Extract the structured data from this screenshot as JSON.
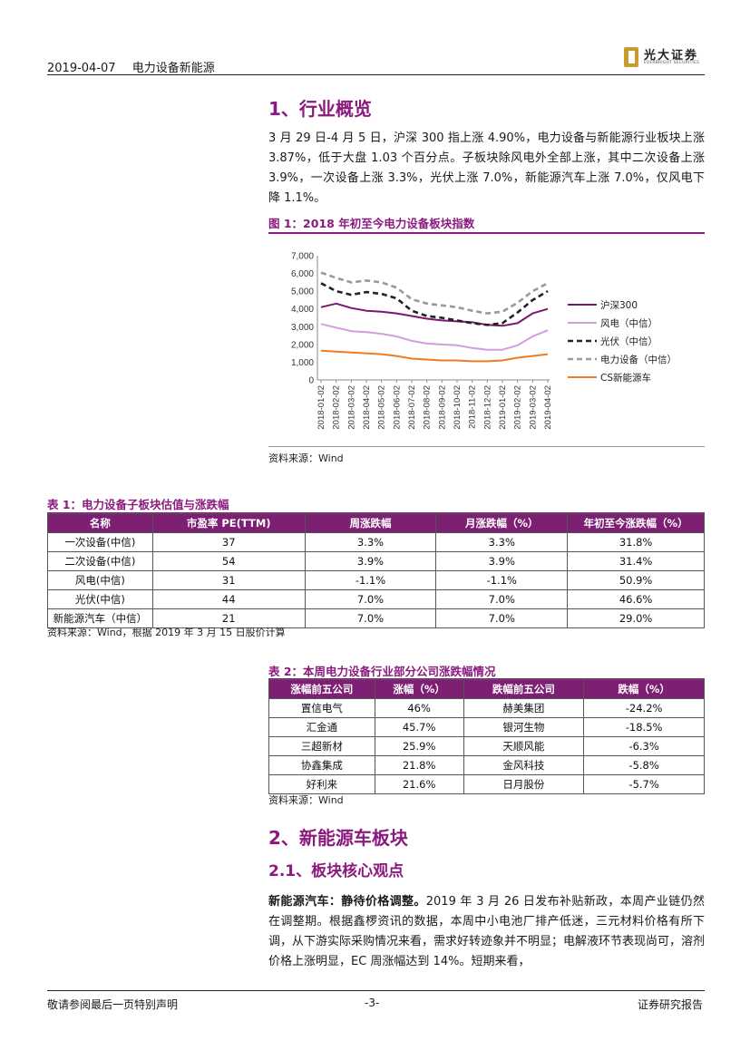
{
  "header": {
    "date": "2019-04-07",
    "section": "电力设备新能源",
    "logo_name": "光大证券",
    "logo_sub": "EVERBRIGHT SECURITIES"
  },
  "section1": {
    "title": "1、行业概览",
    "paragraph": "3 月 29 日-4 月 5 日，沪深 300 指上涨 4.90%，电力设备与新能源行业板块上涨 3.87%，低于大盘 1.03 个百分点。子板块除风电外全部上涨，其中二次设备上涨 3.9%，一次设备上涨 3.3%，光伏上涨 7.0%，新能源汽车上涨 7.0%，仅风电下降 1.1%。"
  },
  "figure1": {
    "title": "图 1：2018 年初至今电力设备板块指数",
    "source": "资料来源：Wind"
  },
  "chart_data": {
    "type": "line",
    "title": "",
    "ylim": [
      0,
      7000
    ],
    "yticks": [
      "7,000",
      "6,000",
      "5,000",
      "4,000",
      "3,000",
      "2,000",
      "1,000",
      "0"
    ],
    "x": [
      "2018-01-02",
      "2018-02-02",
      "2018-03-02",
      "2018-04-02",
      "2018-05-02",
      "2018-06-02",
      "2018-07-02",
      "2018-08-02",
      "2018-09-02",
      "2018-10-02",
      "2018-11-02",
      "2018-12-02",
      "2019-01-02",
      "2019-02-02",
      "2019-03-02",
      "2019-04-02"
    ],
    "legend_position": "right",
    "series": [
      {
        "name": "沪深300",
        "color": "#7b1670",
        "dash": "solid",
        "values": [
          4100,
          4300,
          4050,
          3900,
          3850,
          3750,
          3600,
          3450,
          3350,
          3300,
          3250,
          3100,
          3050,
          3200,
          3750,
          4000
        ]
      },
      {
        "name": "风电（中信）",
        "color": "#d59be0",
        "dash": "solid",
        "values": [
          3150,
          2950,
          2750,
          2700,
          2600,
          2450,
          2200,
          2050,
          2000,
          1950,
          1800,
          1700,
          1700,
          1950,
          2450,
          2800
        ]
      },
      {
        "name": "光伏（中信）",
        "color": "#222222",
        "dash": "dash",
        "values": [
          5450,
          5000,
          4800,
          4950,
          4850,
          4600,
          3900,
          3600,
          3500,
          3350,
          3200,
          3100,
          3200,
          3800,
          4500,
          5000
        ]
      },
      {
        "name": "电力设备（中信）",
        "color": "#999999",
        "dash": "dash",
        "values": [
          6050,
          5750,
          5500,
          5600,
          5500,
          5200,
          4550,
          4300,
          4200,
          4100,
          3900,
          3750,
          3850,
          4350,
          5000,
          5450
        ]
      },
      {
        "name": "CS新能源车",
        "color": "#f07b22",
        "dash": "solid",
        "values": [
          1650,
          1600,
          1550,
          1500,
          1450,
          1350,
          1200,
          1150,
          1100,
          1100,
          1050,
          1050,
          1100,
          1250,
          1350,
          1450
        ]
      }
    ]
  },
  "table1": {
    "title": "表 1：电力设备子板块估值与涨跌幅",
    "headers": [
      "名称",
      "市盈率 PE(TTM)",
      "周涨跌幅",
      "月涨跌幅（%）",
      "年初至今涨跌幅（%）"
    ],
    "rows": [
      [
        "一次设备(中信)",
        "37",
        "3.3%",
        "3.3%",
        "31.8%"
      ],
      [
        "二次设备(中信)",
        "54",
        "3.9%",
        "3.9%",
        "31.4%"
      ],
      [
        "风电(中信)",
        "31",
        "-1.1%",
        "-1.1%",
        "50.9%"
      ],
      [
        "光伏(中信)",
        "44",
        "7.0%",
        "7.0%",
        "46.6%"
      ],
      [
        "新能源汽车（中信）",
        "21",
        "7.0%",
        "7.0%",
        "29.0%"
      ]
    ],
    "source": "资料来源：Wind，根据 2019 年 3 月 15 日股价计算"
  },
  "table2": {
    "title": "表 2：本周电力设备行业部分公司涨跌幅情况",
    "headers": [
      "涨幅前五公司",
      "涨幅（%）",
      "跌幅前五公司",
      "跌幅（%）"
    ],
    "rows": [
      [
        "置信电气",
        "46%",
        "赫美集团",
        "-24.2%"
      ],
      [
        "汇金通",
        "45.7%",
        "银河生物",
        "-18.5%"
      ],
      [
        "三超新材",
        "25.9%",
        "天顺风能",
        "-6.3%"
      ],
      [
        "协鑫集成",
        "21.8%",
        "金风科技",
        "-5.8%"
      ],
      [
        "好利来",
        "21.6%",
        "日月股份",
        "-5.7%"
      ]
    ],
    "source": "资料来源：Wind"
  },
  "section2": {
    "title": "2、新能源车板块",
    "sub_title": "2.1、板块核心观点",
    "para_bold": "新能源汽车：静待价格调整。",
    "para_rest": "2019 年 3 月 26 日发布补贴新政，本周产业链仍然在调整期。根据鑫椤资讯的数据，本周中小电池厂排产低迷，三元材料价格有所下调，从下游实际采购情况来看，需求好转迹象并不明显；电解液环节表现尚可，溶剂价格上涨明显，EC 周涨幅达到 14%。短期来看，"
  },
  "footer": {
    "left": "敬请参阅最后一页特别声明",
    "page": "-3-",
    "right": "证券研究报告"
  }
}
